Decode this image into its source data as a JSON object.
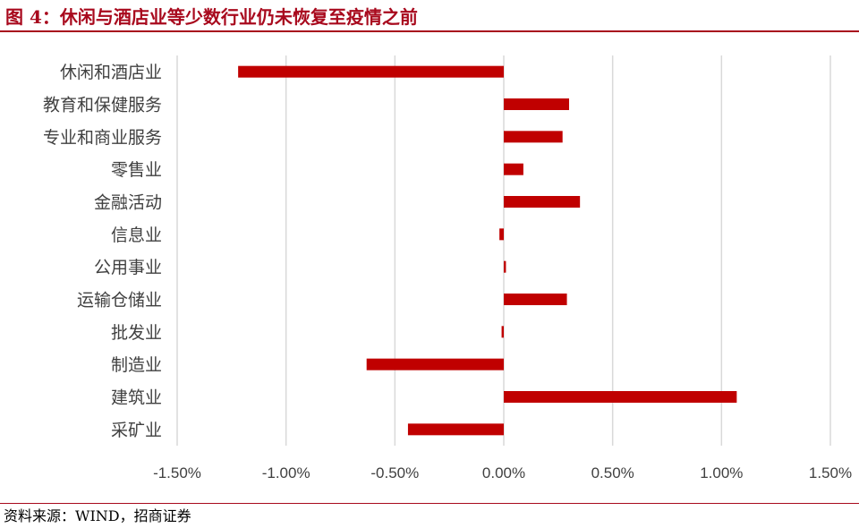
{
  "figure": {
    "title": "图 4：休闲与酒店业等少数行业仍未恢复至疫情之前",
    "source": "资料来源：WIND，招商证券",
    "accent_color": "#a8091d"
  },
  "chart_data": {
    "type": "bar",
    "orientation": "horizontal",
    "categories": [
      "休闲和酒店业",
      "教育和保健服务",
      "专业和商业服务",
      "零售业",
      "金融活动",
      "信息业",
      "公用事业",
      "运输仓储业",
      "批发业",
      "制造业",
      "建筑业",
      "采矿业"
    ],
    "values": [
      -1.22,
      0.3,
      0.27,
      0.09,
      0.35,
      -0.02,
      0.01,
      0.29,
      -0.01,
      -0.63,
      1.07,
      -0.44
    ],
    "unit": "%",
    "xlim": [
      -1.5,
      1.5
    ],
    "xticks": [
      -1.5,
      -1.0,
      -0.5,
      0.0,
      0.5,
      1.0,
      1.5
    ],
    "xtick_labels": [
      "-1.50%",
      "-1.00%",
      "-0.50%",
      "0.00%",
      "0.50%",
      "1.00%",
      "1.50%"
    ],
    "grid": "vertical",
    "legend": "none",
    "bar_color": "#c00000",
    "grid_color": "#d9d9d9"
  }
}
